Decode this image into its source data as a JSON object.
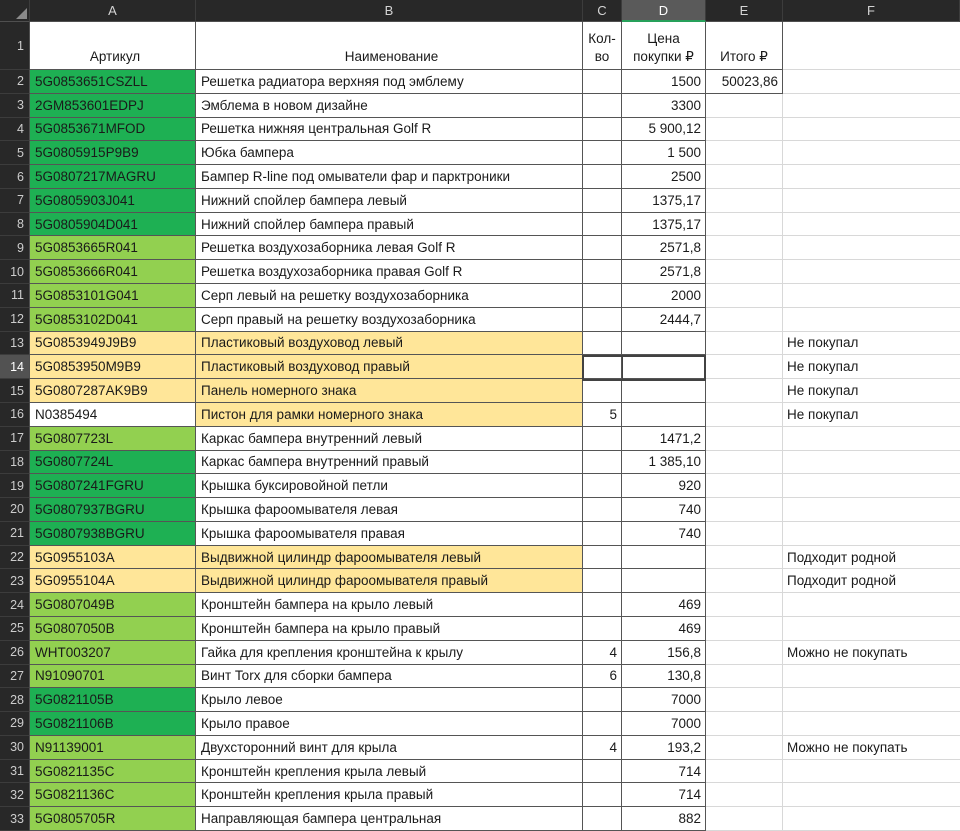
{
  "columns": [
    {
      "letter": "A"
    },
    {
      "letter": "B"
    },
    {
      "letter": "C"
    },
    {
      "letter": "D"
    },
    {
      "letter": "E"
    },
    {
      "letter": "F"
    }
  ],
  "header": {
    "row_number": "1",
    "a": "Артикул",
    "b": "Наименование",
    "c_line1": "Кол-",
    "c_line2": "во",
    "d_line1": "Цена",
    "d_line2": "покупки ₽",
    "e": "Итого ₽"
  },
  "selection": {
    "active_cell": "D14",
    "selected_column": "D",
    "selected_row": 14
  },
  "colors": {
    "green-dark": "#1eb053",
    "green-light": "#92d050",
    "yellow": "#ffe699",
    "header_accent_green": "#26a05a"
  },
  "rows": [
    {
      "n": 2,
      "article": "5G0853651CSZLL",
      "article_fill": "green-dark",
      "name": "Решетка радиатора верхняя под эмблему",
      "name_fill": "none",
      "qty": "",
      "price": "1500",
      "total": "50023,86",
      "note": ""
    },
    {
      "n": 3,
      "article": "2GM853601EDPJ",
      "article_fill": "green-dark",
      "name": "Эмблема в новом дизайне",
      "name_fill": "none",
      "qty": "",
      "price": "3300",
      "total": "",
      "note": ""
    },
    {
      "n": 4,
      "article": "5G0853671MFOD",
      "article_fill": "green-dark",
      "name": "Решетка нижняя центральная Golf R",
      "name_fill": "none",
      "qty": "",
      "price": "5 900,12",
      "total": "",
      "note": ""
    },
    {
      "n": 5,
      "article": "5G0805915P9B9",
      "article_fill": "green-dark",
      "name": "Юбка бампера",
      "name_fill": "none",
      "qty": "",
      "price": "1 500",
      "total": "",
      "note": ""
    },
    {
      "n": 6,
      "article": "5G0807217MAGRU",
      "article_fill": "green-dark",
      "name": "Бампер R-line под омыватели фар и парктроники",
      "name_fill": "none",
      "qty": "",
      "price": "2500",
      "total": "",
      "note": ""
    },
    {
      "n": 7,
      "article": "5G0805903J041",
      "article_fill": "green-dark",
      "name": "Нижний спойлер бампера левый",
      "name_fill": "none",
      "qty": "",
      "price": "1375,17",
      "total": "",
      "note": ""
    },
    {
      "n": 8,
      "article": "5G0805904D041",
      "article_fill": "green-dark",
      "name": "Нижний спойлер бампера правый",
      "name_fill": "none",
      "qty": "",
      "price": "1375,17",
      "total": "",
      "note": ""
    },
    {
      "n": 9,
      "article": "5G0853665R041",
      "article_fill": "green-light",
      "name": "Решетка воздухозаборника левая Golf R",
      "name_fill": "none",
      "qty": "",
      "price": "2571,8",
      "total": "",
      "note": ""
    },
    {
      "n": 10,
      "article": "5G0853666R041",
      "article_fill": "green-light",
      "name": "Решетка воздухозаборника правая Golf R",
      "name_fill": "none",
      "qty": "",
      "price": "2571,8",
      "total": "",
      "note": ""
    },
    {
      "n": 11,
      "article": "5G0853101G041",
      "article_fill": "green-light",
      "name": "Серп левый на решетку воздухозаборника",
      "name_fill": "none",
      "qty": "",
      "price": "2000",
      "total": "",
      "note": ""
    },
    {
      "n": 12,
      "article": "5G0853102D041",
      "article_fill": "green-light",
      "name": "Серп правый на решетку воздухозаборника",
      "name_fill": "none",
      "qty": "",
      "price": "2444,7",
      "total": "",
      "note": ""
    },
    {
      "n": 13,
      "article": "5G0853949J9B9",
      "article_fill": "yellow",
      "name": "Пластиковый воздуховод левый",
      "name_fill": "yellow",
      "qty": "",
      "price": "",
      "total": "",
      "note": "Не покупал"
    },
    {
      "n": 14,
      "article": "5G0853950M9B9",
      "article_fill": "yellow",
      "name": "Пластиковый воздуховод правый",
      "name_fill": "yellow",
      "qty": "",
      "price": "",
      "total": "",
      "note": "Не покупал"
    },
    {
      "n": 15,
      "article": "5G0807287AK9B9",
      "article_fill": "yellow",
      "name": "Панель номерного знака",
      "name_fill": "yellow",
      "qty": "",
      "price": "",
      "total": "",
      "note": "Не покупал"
    },
    {
      "n": 16,
      "article": "N0385494",
      "article_fill": "none",
      "name": "Пистон для рамки номерного знака",
      "name_fill": "yellow",
      "qty": "5",
      "price": "",
      "total": "",
      "note": "Не покупал"
    },
    {
      "n": 17,
      "article": "5G0807723L",
      "article_fill": "green-light",
      "name": "Каркас бампера внутренний левый",
      "name_fill": "none",
      "qty": "",
      "price": "1471,2",
      "total": "",
      "note": ""
    },
    {
      "n": 18,
      "article": "5G0807724L",
      "article_fill": "green-dark",
      "name": "Каркас бампера внутренний правый",
      "name_fill": "none",
      "qty": "",
      "price": "1 385,10",
      "total": "",
      "note": ""
    },
    {
      "n": 19,
      "article": "5G0807241FGRU",
      "article_fill": "green-dark",
      "name": "Крышка буксировойной петли",
      "name_fill": "none",
      "qty": "",
      "price": "920",
      "total": "",
      "note": ""
    },
    {
      "n": 20,
      "article": "5G0807937BGRU",
      "article_fill": "green-dark",
      "name": "Крышка фароомывателя левая",
      "name_fill": "none",
      "qty": "",
      "price": "740",
      "total": "",
      "note": ""
    },
    {
      "n": 21,
      "article": "5G0807938BGRU",
      "article_fill": "green-dark",
      "name": "Крышка фароомывателя правая",
      "name_fill": "none",
      "qty": "",
      "price": "740",
      "total": "",
      "note": ""
    },
    {
      "n": 22,
      "article": "5G0955103A",
      "article_fill": "yellow",
      "name": "Выдвижной цилиндр фароомывателя левый",
      "name_fill": "yellow",
      "qty": "",
      "price": "",
      "total": "",
      "note": "Подходит родной"
    },
    {
      "n": 23,
      "article": "5G0955104A",
      "article_fill": "yellow",
      "name": "Выдвижной цилиндр фароомывателя правый",
      "name_fill": "yellow",
      "qty": "",
      "price": "",
      "total": "",
      "note": "Подходит родной"
    },
    {
      "n": 24,
      "article": "5G0807049B",
      "article_fill": "green-light",
      "name": "Кронштейн бампера на крыло левый",
      "name_fill": "none",
      "qty": "",
      "price": "469",
      "total": "",
      "note": ""
    },
    {
      "n": 25,
      "article": "5G0807050B",
      "article_fill": "green-light",
      "name": "Кронштейн бампера на крыло правый",
      "name_fill": "none",
      "qty": "",
      "price": "469",
      "total": "",
      "note": ""
    },
    {
      "n": 26,
      "article": "WHT003207",
      "article_fill": "green-light",
      "name": "Гайка для крепления кронштейна к крылу",
      "name_fill": "none",
      "qty": "4",
      "price": "156,8",
      "total": "",
      "note": "Можно не покупать"
    },
    {
      "n": 27,
      "article": "N91090701",
      "article_fill": "green-light",
      "name": "Винт Torx для сборки бампера",
      "name_fill": "none",
      "qty": "6",
      "price": "130,8",
      "total": "",
      "note": ""
    },
    {
      "n": 28,
      "article": "5G0821105B",
      "article_fill": "green-dark",
      "name": "Крыло левое",
      "name_fill": "none",
      "qty": "",
      "price": "7000",
      "total": "",
      "note": ""
    },
    {
      "n": 29,
      "article": "5G0821106B",
      "article_fill": "green-dark",
      "name": "Крыло правое",
      "name_fill": "none",
      "qty": "",
      "price": "7000",
      "total": "",
      "note": ""
    },
    {
      "n": 30,
      "article": "N91139001",
      "article_fill": "green-light",
      "name": "Двухсторонний винт для крыла",
      "name_fill": "none",
      "qty": "4",
      "price": "193,2",
      "total": "",
      "note": "Можно не покупать"
    },
    {
      "n": 31,
      "article": "5G0821135C",
      "article_fill": "green-light",
      "name": "Кронштейн крепления крыла левый",
      "name_fill": "none",
      "qty": "",
      "price": "714",
      "total": "",
      "note": ""
    },
    {
      "n": 32,
      "article": "5G0821136C",
      "article_fill": "green-light",
      "name": "Кронштейн крепления крыла правый",
      "name_fill": "none",
      "qty": "",
      "price": "714",
      "total": "",
      "note": ""
    },
    {
      "n": 33,
      "article": "5G0805705R",
      "article_fill": "green-light",
      "name": "Направляющая бампера центральная",
      "name_fill": "none",
      "qty": "",
      "price": "882",
      "total": "",
      "note": ""
    }
  ]
}
